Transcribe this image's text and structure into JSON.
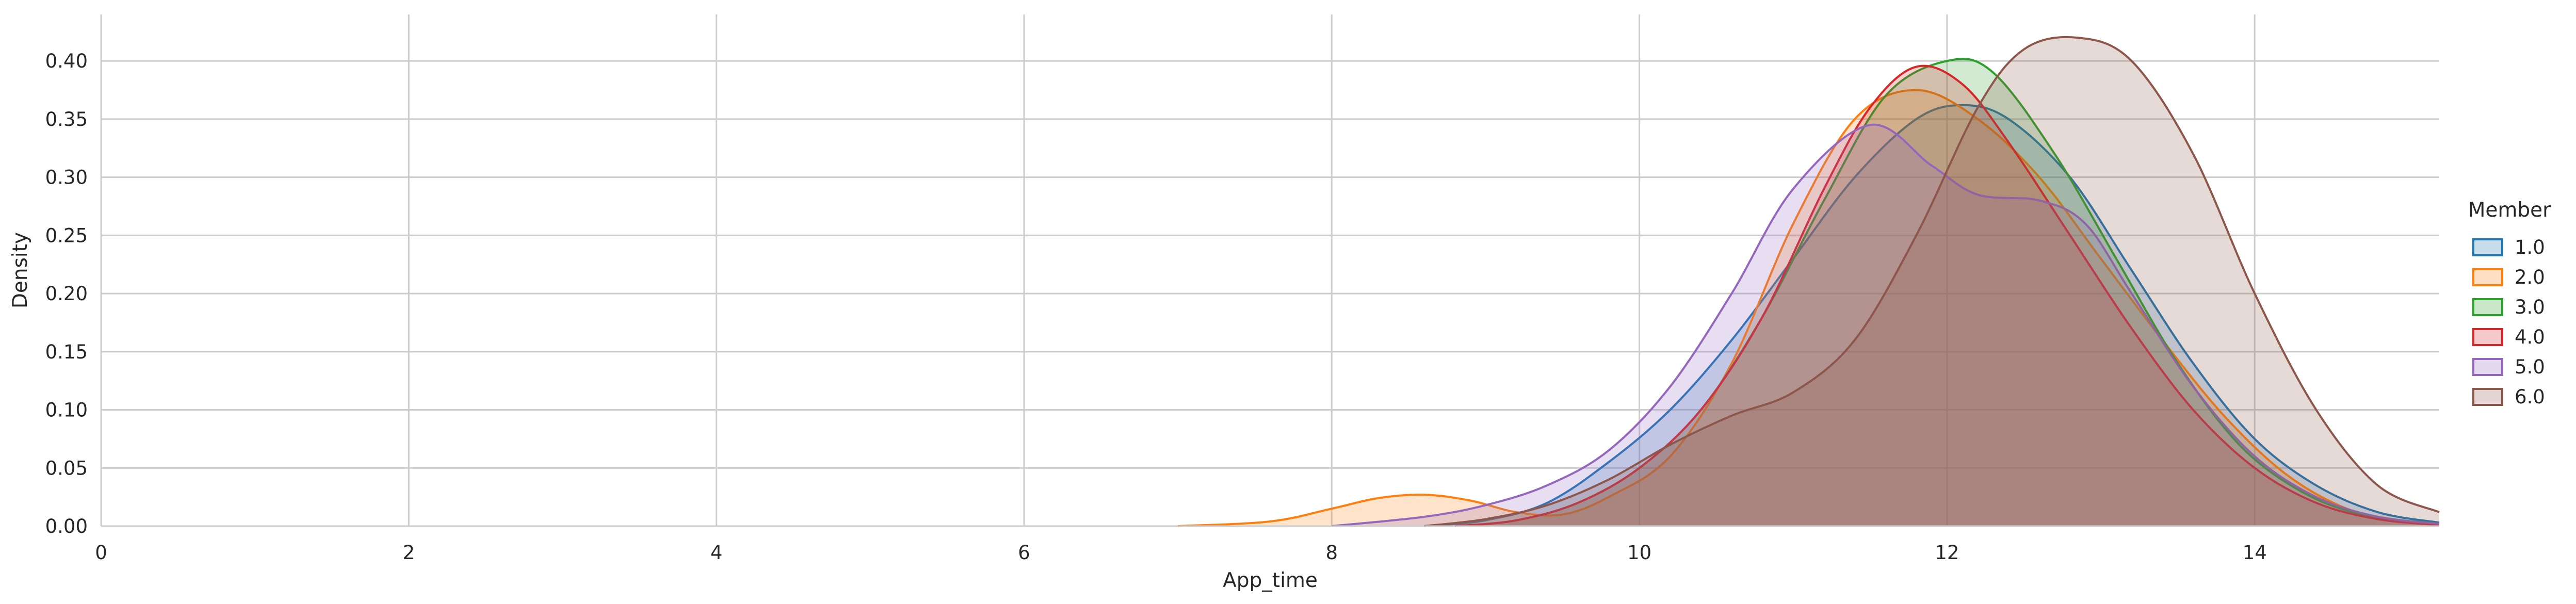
{
  "chart_data": {
    "type": "area",
    "subtype": "kde",
    "xlabel": "App_time",
    "ylabel": "Density",
    "xlim": [
      0,
      15.2
    ],
    "ylim": [
      0,
      0.44
    ],
    "xticks": [
      0,
      2,
      4,
      6,
      8,
      10,
      12,
      14
    ],
    "yticks": [
      0.0,
      0.05,
      0.1,
      0.15,
      0.2,
      0.25,
      0.3,
      0.35,
      0.4
    ],
    "grid": true,
    "legend": {
      "title": "Member",
      "placement": "right"
    },
    "series": [
      {
        "name": "1.0",
        "color": "#1f77b4",
        "x": [
          8.6,
          9.0,
          9.4,
          9.8,
          10.2,
          10.6,
          11.0,
          11.4,
          11.8,
          12.1,
          12.4,
          12.8,
          13.2,
          13.6,
          14.0,
          14.4,
          14.8,
          15.2
        ],
        "y": [
          0.0,
          0.005,
          0.02,
          0.055,
          0.1,
          0.16,
          0.23,
          0.3,
          0.35,
          0.362,
          0.35,
          0.3,
          0.22,
          0.14,
          0.075,
          0.035,
          0.012,
          0.003
        ]
      },
      {
        "name": "2.0",
        "color": "#ff7f0e",
        "x": [
          7.0,
          7.6,
          8.0,
          8.3,
          8.6,
          8.9,
          9.2,
          9.5,
          9.8,
          10.2,
          10.6,
          11.0,
          11.4,
          11.8,
          12.2,
          12.6,
          13.0,
          13.4,
          13.8,
          14.2,
          14.6,
          15.0,
          15.2
        ],
        "y": [
          0.0,
          0.004,
          0.015,
          0.024,
          0.027,
          0.022,
          0.012,
          0.01,
          0.025,
          0.06,
          0.14,
          0.26,
          0.35,
          0.375,
          0.35,
          0.3,
          0.23,
          0.16,
          0.095,
          0.045,
          0.015,
          0.004,
          0.002
        ]
      },
      {
        "name": "3.0",
        "color": "#2ca02c",
        "x": [
          8.8,
          9.2,
          9.6,
          10.0,
          10.4,
          10.8,
          11.2,
          11.6,
          12.0,
          12.3,
          12.7,
          13.1,
          13.5,
          13.9,
          14.3,
          14.7,
          15.2
        ],
        "y": [
          0.0,
          0.005,
          0.02,
          0.05,
          0.1,
          0.18,
          0.28,
          0.37,
          0.4,
          0.39,
          0.32,
          0.23,
          0.14,
          0.07,
          0.03,
          0.01,
          0.002
        ]
      },
      {
        "name": "4.0",
        "color": "#d62728",
        "x": [
          8.8,
          9.2,
          9.6,
          10.0,
          10.4,
          10.8,
          11.2,
          11.5,
          11.8,
          12.1,
          12.4,
          12.8,
          13.2,
          13.6,
          14.0,
          14.4,
          14.8,
          15.2
        ],
        "y": [
          0.0,
          0.005,
          0.02,
          0.05,
          0.1,
          0.18,
          0.29,
          0.36,
          0.395,
          0.38,
          0.33,
          0.25,
          0.17,
          0.1,
          0.05,
          0.02,
          0.006,
          0.001
        ]
      },
      {
        "name": "5.0",
        "color": "#9467bd",
        "x": [
          8.0,
          8.6,
          9.0,
          9.4,
          9.8,
          10.2,
          10.6,
          11.0,
          11.5,
          11.9,
          12.2,
          12.6,
          12.9,
          13.2,
          13.6,
          14.0,
          14.4,
          14.8,
          15.2
        ],
        "y": [
          0.0,
          0.008,
          0.018,
          0.035,
          0.065,
          0.12,
          0.2,
          0.29,
          0.345,
          0.31,
          0.285,
          0.28,
          0.26,
          0.2,
          0.12,
          0.06,
          0.025,
          0.008,
          0.002
        ]
      },
      {
        "name": "6.0",
        "color": "#8c564b",
        "x": [
          8.6,
          9.0,
          9.4,
          9.8,
          10.2,
          10.6,
          11.0,
          11.4,
          11.8,
          12.2,
          12.5,
          12.85,
          13.2,
          13.6,
          14.0,
          14.4,
          14.8,
          15.2
        ],
        "y": [
          0.0,
          0.006,
          0.018,
          0.04,
          0.07,
          0.095,
          0.115,
          0.16,
          0.25,
          0.36,
          0.41,
          0.42,
          0.4,
          0.32,
          0.2,
          0.1,
          0.035,
          0.012
        ]
      }
    ]
  }
}
